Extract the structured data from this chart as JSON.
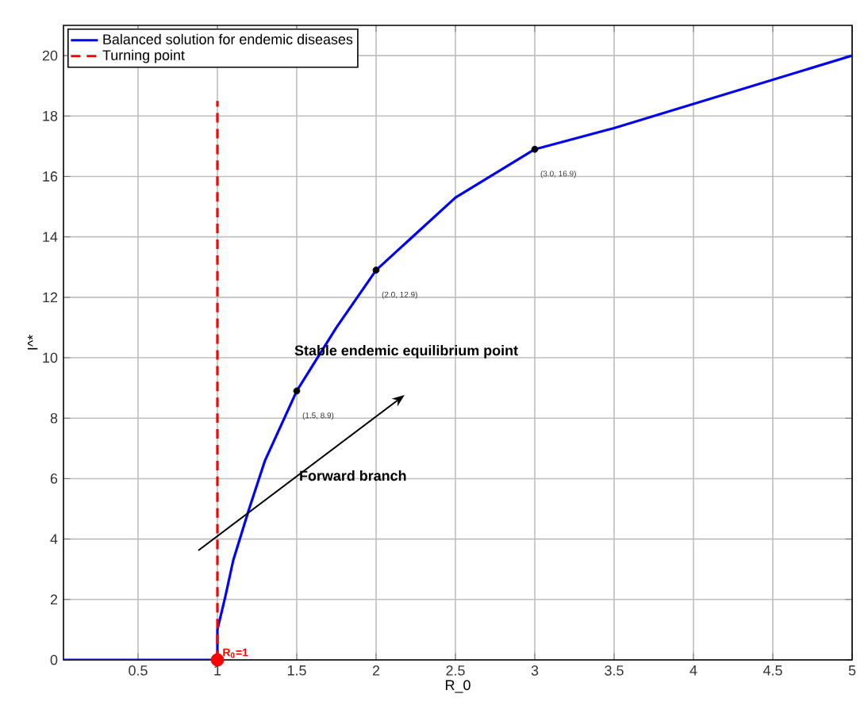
{
  "chart_data": {
    "type": "line",
    "xlabel": "R_0",
    "ylabel": "I^*",
    "xlim": [
      0.03,
      5
    ],
    "ylim": [
      0,
      21
    ],
    "xticks": [
      0.5,
      1,
      1.5,
      2,
      2.5,
      3,
      3.5,
      4,
      4.5,
      5
    ],
    "yticks": [
      0,
      2,
      4,
      6,
      8,
      10,
      12,
      14,
      16,
      18,
      20
    ],
    "grid": true,
    "legend": "top left",
    "series": [
      {
        "name": "Balanced solution for endemic diseases",
        "color": "#0000ff",
        "marker": "none",
        "line_style": "solid",
        "x": [
          0.03,
          0.5,
          1,
          1,
          1.05,
          1.1,
          1.2,
          1.3,
          1.5,
          1.75,
          2,
          2.5,
          3,
          3.5,
          4,
          4.5,
          5
        ],
        "values": [
          0,
          0,
          0,
          1.0,
          2.1,
          3.3,
          5.0,
          6.6,
          8.9,
          11.0,
          12.9,
          15.3,
          16.9,
          17.6,
          18.4,
          19.2,
          20.0
        ]
      },
      {
        "name": "Turning point",
        "color": "#ff0000",
        "marker": "none",
        "line_style": "dashed",
        "x": [
          1,
          1
        ],
        "values": [
          0,
          18.5
        ]
      },
      {
        "type": "scatter",
        "color": "#000000",
        "marker": "circle",
        "x": [
          1.5,
          2,
          3
        ],
        "values": [
          8.9,
          12.9,
          16.9
        ],
        "value_labels": [
          "(1.5, 8.9)",
          "(2.0, 12.9)",
          "(3.0, 16.9)"
        ]
      },
      {
        "type": "scatter",
        "color": "#ff0000",
        "marker": "circle",
        "x": [
          1
        ],
        "values": [
          0
        ]
      }
    ],
    "annotations": [
      {
        "text": "R$_{0}$=1",
        "x": 1,
        "y": 0
      },
      "Stable endemic equilibrium point",
      "Forward branch"
    ]
  }
}
